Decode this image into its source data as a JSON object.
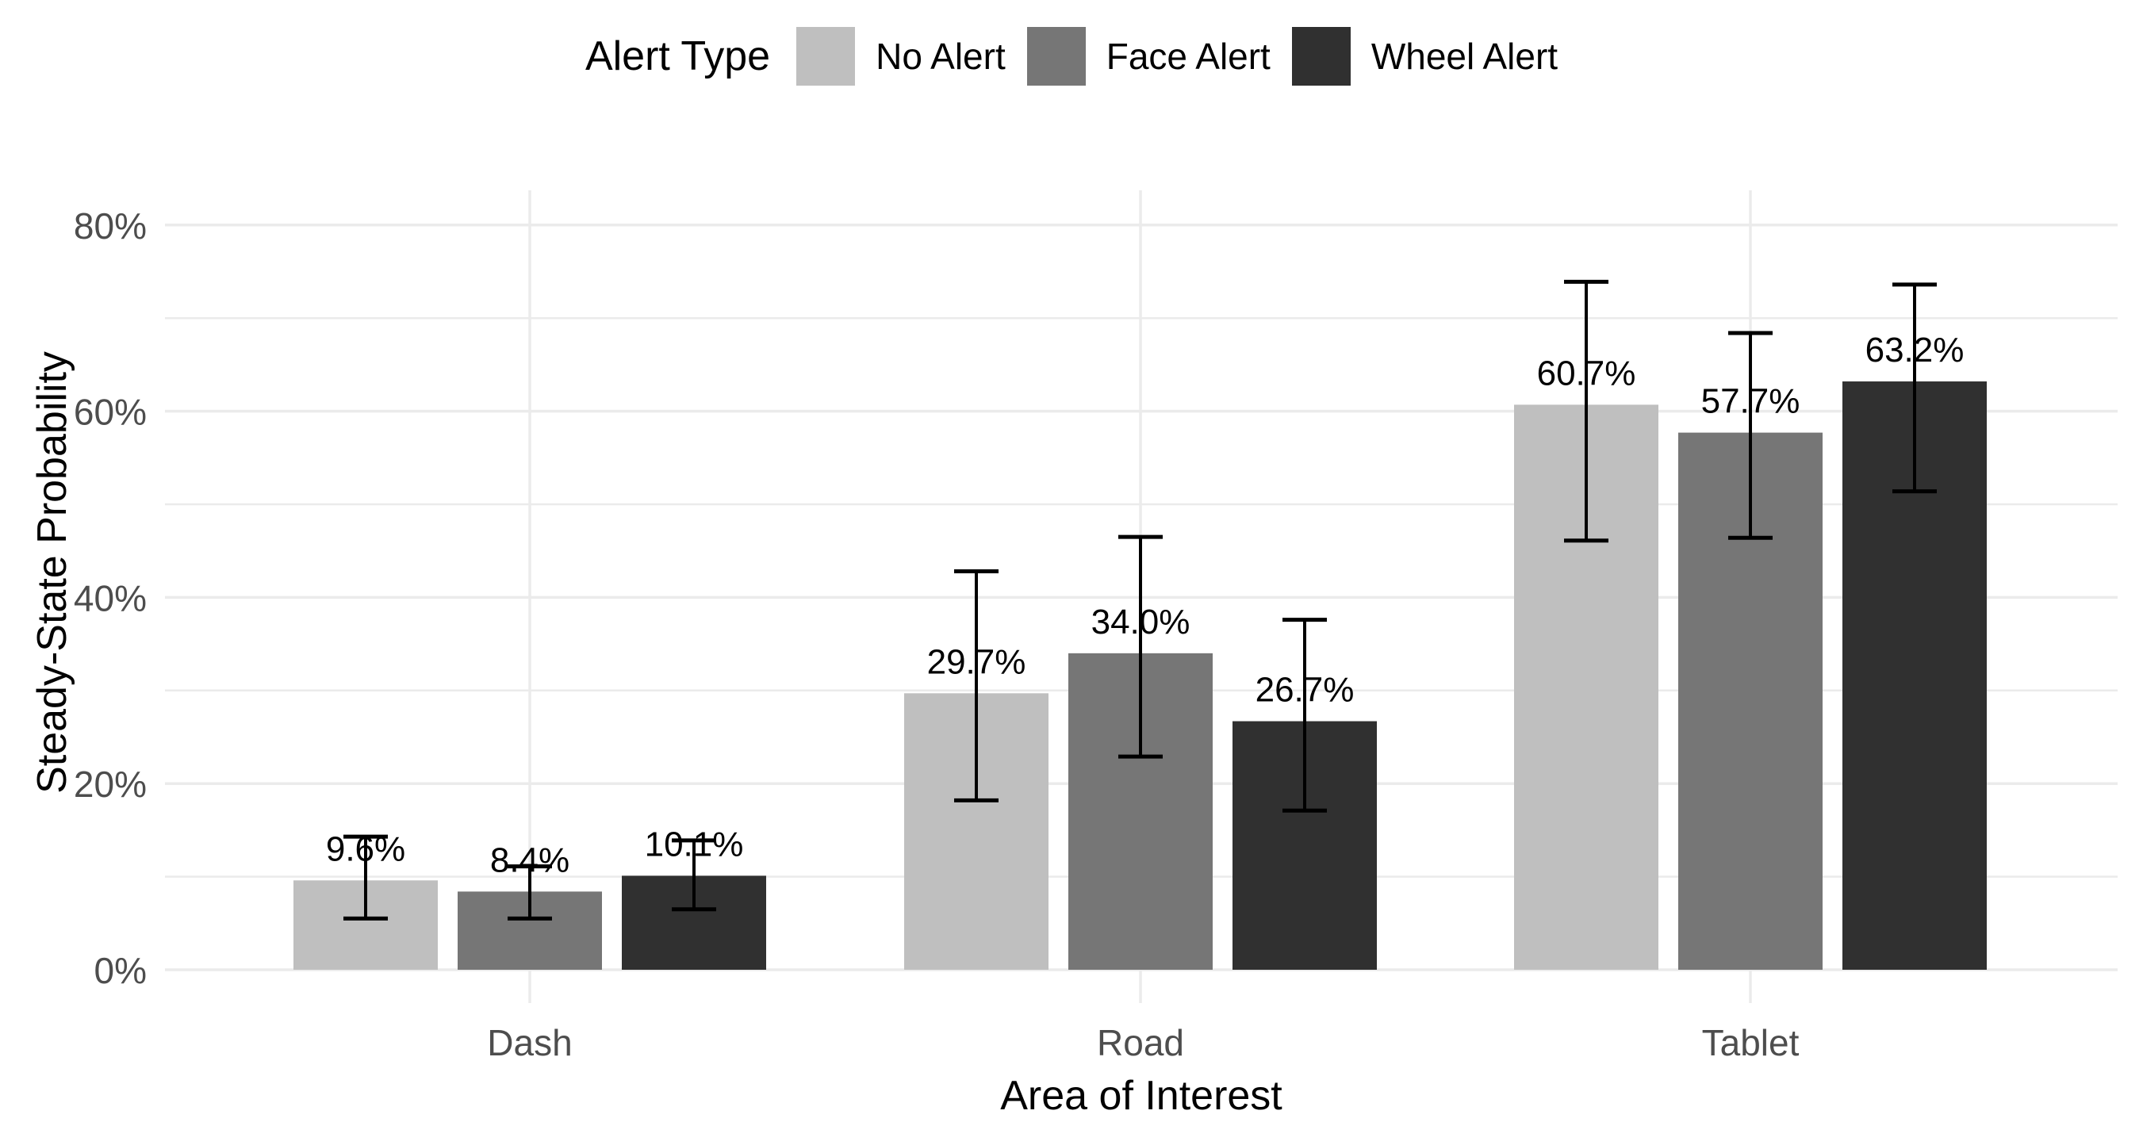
{
  "figure": {
    "background": "#ffffff",
    "legend": {
      "title": "Alert Type",
      "position": "top",
      "items": [
        "No Alert",
        "Face Alert",
        "Wheel Alert"
      ]
    }
  },
  "chart_data": {
    "type": "bar",
    "title": "",
    "xlabel": "Area of Interest",
    "ylabel": "Steady-State Probability",
    "legend_title": "Alert Type",
    "legend_position": "top",
    "categories": [
      "Dash",
      "Road",
      "Tablet"
    ],
    "series": [
      {
        "name": "No Alert",
        "color": "#bfbfbf",
        "values": [
          9.6,
          29.7,
          60.7
        ],
        "value_labels": [
          "9.6%",
          "29.7%",
          "60.7%"
        ],
        "error_low": [
          5.5,
          18.2,
          46.1
        ],
        "error_high": [
          14.3,
          42.8,
          73.9
        ]
      },
      {
        "name": "Face Alert",
        "color": "#767676",
        "values": [
          8.4,
          34.0,
          57.7
        ],
        "value_labels": [
          "8.4%",
          "34.0%",
          "57.7%"
        ],
        "error_low": [
          5.5,
          22.9,
          46.4
        ],
        "error_high": [
          11.1,
          46.5,
          68.4
        ]
      },
      {
        "name": "Wheel Alert",
        "color": "#303030",
        "values": [
          10.1,
          26.7,
          63.2
        ],
        "value_labels": [
          "10.1%",
          "26.7%",
          "63.2%"
        ],
        "error_low": [
          6.5,
          17.1,
          51.4
        ],
        "error_high": [
          13.9,
          37.6,
          73.6
        ]
      }
    ],
    "y_axis": {
      "tick_values": [
        0,
        20,
        40,
        60,
        80
      ],
      "tick_labels": [
        "0%",
        "20%",
        "40%",
        "60%",
        "80%"
      ],
      "minor_gridline_values": [
        10,
        30,
        50,
        70
      ],
      "ylim": [
        0,
        85
      ],
      "grid": true
    },
    "colors": {
      "gridline": "#ebebeb",
      "tick_text": "#4d4d4d",
      "value_label_text": "#000000",
      "error_bar": "#000000",
      "axis_title_text": "#000000"
    }
  }
}
